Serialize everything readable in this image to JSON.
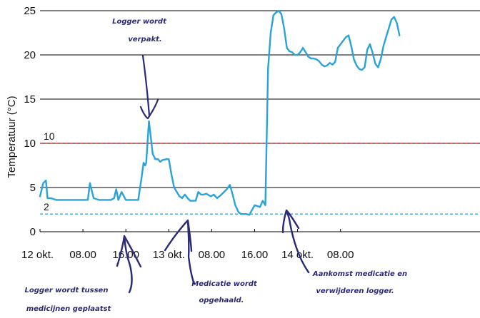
{
  "chart_data": {
    "type": "line",
    "ylabel": "Temperatuur (°C)",
    "xlabel": "",
    "ylim": [
      0,
      25
    ],
    "xlim": [
      0,
      82
    ],
    "yticks": [
      0,
      5,
      10,
      15,
      20,
      25
    ],
    "xticks": [
      {
        "x": 0,
        "label": "12 okt."
      },
      {
        "x": 8,
        "label": "08.00"
      },
      {
        "x": 16,
        "label": "16.00"
      },
      {
        "x": 24,
        "label": "13 okt."
      },
      {
        "x": 32,
        "label": "08.00"
      },
      {
        "x": 40,
        "label": "16.00"
      },
      {
        "x": 48,
        "label": "14 okt."
      },
      {
        "x": 56,
        "label": "08.00"
      }
    ],
    "grid": true,
    "line_color": "#2aa3d8",
    "thresholds": [
      {
        "value": 10,
        "label": "10",
        "color": "#e53935"
      },
      {
        "value": 2,
        "label": "2",
        "color": "#3aa7dc"
      }
    ],
    "series": [
      {
        "x": [
          0,
          0.6,
          1.1,
          1.4,
          2,
          3,
          4,
          5,
          6,
          7,
          8,
          8.5,
          8.9,
          9.3,
          10,
          11,
          12,
          12.6,
          13.2,
          13.8,
          14.2,
          14.6,
          15.2,
          16,
          16.8,
          17.5,
          18.3,
          18.9,
          19.3,
          19.6,
          19.8,
          20.3,
          21,
          21.5,
          22,
          22.4,
          22.8,
          23.5,
          24,
          24.5,
          25,
          25.5,
          26,
          26.5,
          27,
          27.5,
          28,
          28.5,
          29,
          29.5,
          30,
          30.5,
          31,
          31.8,
          32.4,
          33,
          33.8,
          34.8,
          35.4,
          35.9,
          36.4,
          37,
          37.5,
          38,
          38.5,
          39,
          40,
          41,
          41.5,
          42,
          42.5,
          43,
          43.5,
          44,
          44.5,
          45,
          45.5,
          46,
          46.5,
          47,
          47.5,
          48,
          48.5,
          49,
          49.5,
          50,
          50.5,
          51,
          51.5,
          52,
          52.5,
          53,
          53.5,
          54,
          54.5,
          55,
          55.5,
          56,
          56.5,
          57,
          57.5,
          58,
          58.5,
          59,
          59.5,
          60,
          60.5,
          61,
          61.5,
          62,
          62.5,
          63,
          63.5,
          64,
          64.5,
          65,
          65.5,
          66,
          66.5,
          67
        ],
        "y": [
          4.0,
          5.5,
          5.8,
          3.8,
          3.8,
          3.6,
          3.6,
          3.6,
          3.6,
          3.6,
          3.6,
          3.6,
          3.6,
          5.5,
          3.8,
          3.6,
          3.6,
          3.6,
          3.6,
          3.8,
          4.8,
          3.6,
          4.5,
          3.6,
          3.6,
          3.6,
          3.6,
          6.0,
          7.8,
          7.5,
          7.8,
          12.5,
          8.8,
          8.2,
          8.2,
          7.9,
          8.1,
          8.2,
          8.2,
          6.5,
          5.0,
          4.5,
          4.0,
          3.8,
          4.2,
          3.8,
          3.5,
          3.5,
          3.5,
          4.5,
          4.2,
          4.2,
          4.3,
          4.0,
          4.2,
          3.8,
          4.2,
          4.8,
          5.3,
          4.2,
          3.0,
          2.2,
          2.0,
          2.0,
          2.0,
          1.9,
          3.0,
          2.8,
          3.5,
          3.0,
          18.5,
          22.5,
          24.5,
          24.8,
          25.0,
          24.6,
          23.0,
          20.8,
          20.4,
          20.3,
          20.0,
          20.0,
          20.3,
          20.8,
          20.3,
          19.8,
          19.6,
          19.6,
          19.5,
          19.3,
          18.9,
          18.7,
          18.8,
          19.1,
          18.9,
          19.2,
          20.8,
          21.2,
          21.6,
          22.0,
          22.2,
          21.0,
          19.5,
          18.8,
          18.4,
          18.3,
          18.6,
          20.6,
          21.2,
          20.2,
          19.0,
          18.6,
          19.5,
          21.0,
          22.0,
          23.0,
          24.0,
          24.3,
          23.6,
          22.2
        ]
      }
    ],
    "annotations": [
      {
        "lines": [
          "Logger wordt",
          "verpakt."
        ]
      },
      {
        "lines": [
          "Logger wordt tussen",
          "medicijnen geplaatst"
        ]
      },
      {
        "lines": [
          "Medicatie wordt",
          "opgehaald."
        ]
      },
      {
        "lines": [
          "Aankomst medicatie en",
          "verwijderen logger."
        ]
      }
    ]
  }
}
